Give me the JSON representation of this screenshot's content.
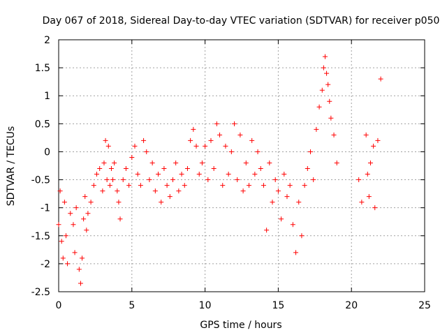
{
  "chart_data": {
    "type": "scatter",
    "title": "Day 067 of 2018, Sidereal Day-to-day VTEC variation (SDTVAR) for receiver p050",
    "xlabel": "GPS time / hours",
    "ylabel": "SDTVAR / TECUs",
    "xlim": [
      0,
      25
    ],
    "ylim": [
      -2.5,
      2
    ],
    "xticks": [
      0,
      5,
      10,
      15,
      20,
      25
    ],
    "xtick_labels": [
      "0",
      "5",
      "10",
      "15",
      "20",
      "25"
    ],
    "yticks": [
      -2.5,
      -2,
      -1.5,
      -1,
      -0.5,
      0,
      0.5,
      1,
      1.5,
      2
    ],
    "ytick_labels": [
      "-2.5",
      "-2",
      "-1.5",
      "-1",
      "-0.5",
      "0",
      "0.5",
      "1",
      "1.5",
      "2"
    ],
    "grid": true,
    "marker": "+",
    "color": "#ff0000",
    "series": [
      {
        "name": "SDTVAR",
        "x": [
          0.0,
          0.1,
          0.2,
          0.3,
          0.4,
          0.5,
          0.6,
          0.8,
          1.0,
          1.1,
          1.2,
          1.4,
          1.5,
          1.6,
          1.7,
          1.8,
          1.9,
          2.0,
          2.2,
          2.4,
          2.6,
          2.8,
          3.0,
          3.1,
          3.2,
          3.3,
          3.4,
          3.5,
          3.6,
          3.7,
          3.8,
          4.0,
          4.1,
          4.2,
          4.4,
          4.6,
          4.8,
          5.0,
          5.2,
          5.4,
          5.6,
          5.8,
          6.0,
          6.2,
          6.4,
          6.6,
          6.8,
          7.0,
          7.2,
          7.4,
          7.6,
          7.8,
          8.0,
          8.2,
          8.4,
          8.6,
          8.8,
          9.0,
          9.2,
          9.4,
          9.6,
          9.8,
          10.0,
          10.2,
          10.4,
          10.6,
          10.8,
          11.0,
          11.2,
          11.4,
          11.6,
          11.8,
          12.0,
          12.2,
          12.4,
          12.6,
          12.8,
          13.0,
          13.2,
          13.4,
          13.6,
          13.8,
          14.0,
          14.2,
          14.4,
          14.6,
          14.8,
          15.0,
          15.2,
          15.4,
          15.6,
          15.8,
          16.0,
          16.2,
          16.4,
          16.6,
          16.8,
          17.0,
          17.2,
          17.4,
          17.6,
          17.8,
          18.0,
          18.1,
          18.2,
          18.3,
          18.4,
          18.5,
          18.6,
          18.8,
          19.0,
          20.5,
          20.7,
          21.0,
          21.1,
          21.2,
          21.3,
          21.5,
          21.6,
          21.8,
          22.0
        ],
        "y": [
          -1.3,
          -0.7,
          -1.6,
          -1.9,
          -0.9,
          -1.5,
          -2.0,
          -1.1,
          -1.3,
          -1.8,
          -1.0,
          -2.1,
          -2.35,
          -1.9,
          -1.2,
          -0.8,
          -1.4,
          -1.1,
          -0.9,
          -0.6,
          -0.4,
          -0.3,
          -0.7,
          -0.2,
          0.2,
          -0.5,
          0.1,
          -0.6,
          -0.3,
          -0.5,
          -0.2,
          -0.7,
          -0.9,
          -1.2,
          -0.5,
          -0.3,
          -0.6,
          -0.1,
          0.1,
          -0.4,
          -0.6,
          0.2,
          0.0,
          -0.5,
          -0.2,
          -0.7,
          -0.4,
          -0.9,
          -0.3,
          -0.6,
          -0.8,
          -0.5,
          -0.2,
          -0.7,
          -0.4,
          -0.6,
          -0.3,
          0.2,
          0.4,
          0.1,
          -0.4,
          -0.2,
          0.1,
          -0.5,
          0.2,
          -0.3,
          0.5,
          0.3,
          -0.6,
          0.1,
          -0.4,
          0.0,
          0.5,
          -0.5,
          0.3,
          -0.7,
          -0.2,
          -0.6,
          0.2,
          -0.4,
          0.0,
          -0.3,
          -0.6,
          -1.4,
          -0.2,
          -0.9,
          -0.5,
          -0.7,
          -1.2,
          -0.4,
          -0.8,
          -0.6,
          -1.3,
          -1.8,
          -0.9,
          -1.5,
          -0.6,
          -0.3,
          0.0,
          -0.5,
          0.4,
          0.8,
          1.1,
          1.5,
          1.7,
          1.4,
          1.2,
          0.9,
          0.6,
          0.3,
          -0.2,
          -0.5,
          -0.9,
          0.3,
          -0.4,
          -0.8,
          -0.2,
          0.1,
          -1.0,
          0.2,
          1.3
        ]
      }
    ]
  }
}
